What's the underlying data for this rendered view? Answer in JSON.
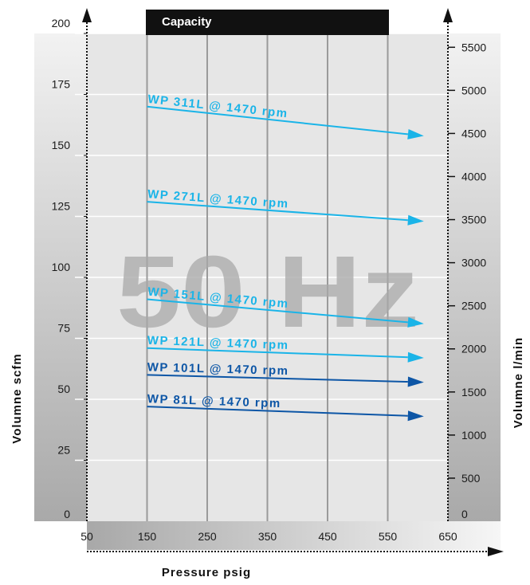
{
  "chart_data": {
    "type": "line",
    "title": "Capacity",
    "watermark": "50 Hz",
    "xlabel": "Pressure psig",
    "ylabel_left": "Volumne scfm",
    "ylabel_right": "Volumne l/min",
    "x_ticks": [
      50,
      150,
      250,
      350,
      450,
      550,
      650
    ],
    "y_left_ticks": [
      0,
      25,
      50,
      75,
      100,
      125,
      150,
      175,
      200
    ],
    "y_right_ticks": [
      500,
      1000,
      1500,
      2000,
      2500,
      3000,
      3500,
      4000,
      4500,
      5000,
      5500
    ],
    "xlim": [
      50,
      650
    ],
    "ylim_left": [
      0,
      200
    ],
    "ylim_right": [
      0,
      5660
    ],
    "grid": true,
    "series": [
      {
        "name": "WP 311L @ 1470 rpm",
        "x": [
          150,
          610
        ],
        "y": [
          170,
          158
        ],
        "color": "#1ab4e8"
      },
      {
        "name": "WP 271L @ 1470 rpm",
        "x": [
          150,
          610
        ],
        "y": [
          131,
          123
        ],
        "color": "#1ab4e8"
      },
      {
        "name": "WP 151L @ 1470 rpm",
        "x": [
          150,
          610
        ],
        "y": [
          91,
          81
        ],
        "color": "#1ab4e8"
      },
      {
        "name": "WP 121L @ 1470 rpm",
        "x": [
          150,
          610
        ],
        "y": [
          71,
          67
        ],
        "color": "#1ab4e8"
      },
      {
        "name": "WP 101L @ 1470 rpm",
        "x": [
          150,
          610
        ],
        "y": [
          60,
          57
        ],
        "color": "#0d56a6"
      },
      {
        "name": "WP 81L @ 1470 rpm",
        "x": [
          150,
          610
        ],
        "y": [
          47,
          43
        ],
        "color": "#0d56a6"
      }
    ]
  }
}
